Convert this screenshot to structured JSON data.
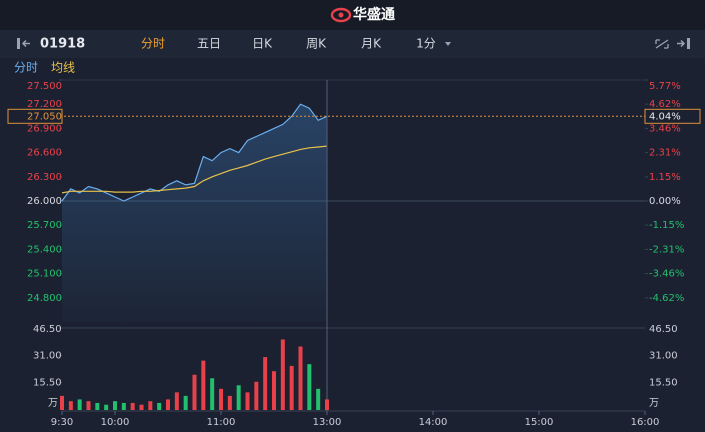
{
  "header": {
    "brand": "华盛通"
  },
  "toolbar": {
    "symbol": "01918",
    "tabs": [
      "分时",
      "五日",
      "日K",
      "周K",
      "月K",
      "1分"
    ],
    "active_tab": 0
  },
  "chart_data": [
    {
      "type": "line",
      "x": [
        "9:30",
        "9:35",
        "9:40",
        "9:45",
        "9:50",
        "9:55",
        "10:00",
        "10:05",
        "10:10",
        "10:15",
        "10:20",
        "10:25",
        "10:30",
        "10:35",
        "10:40",
        "10:45",
        "10:50",
        "10:55",
        "11:00",
        "11:05",
        "11:10",
        "11:15",
        "11:20",
        "11:25",
        "11:30",
        "11:35",
        "11:40",
        "11:45",
        "11:50",
        "11:55",
        "12:00"
      ],
      "series": [
        {
          "name": "分时",
          "color": "#6aaef0",
          "values": [
            26.0,
            26.15,
            26.1,
            26.18,
            26.15,
            26.1,
            26.05,
            26.0,
            26.05,
            26.1,
            26.15,
            26.12,
            26.2,
            26.25,
            26.2,
            26.22,
            26.55,
            26.5,
            26.6,
            26.65,
            26.6,
            26.75,
            26.8,
            26.85,
            26.9,
            26.95,
            27.05,
            27.2,
            27.15,
            27.0,
            27.05
          ]
        },
        {
          "name": "均线",
          "color": "#e8c14a",
          "values": [
            26.1,
            26.12,
            26.12,
            26.12,
            26.12,
            26.12,
            26.11,
            26.11,
            26.11,
            26.12,
            26.12,
            26.13,
            26.14,
            26.15,
            26.16,
            26.18,
            26.25,
            26.3,
            26.34,
            26.38,
            26.41,
            26.44,
            26.48,
            26.52,
            26.55,
            26.58,
            26.61,
            26.64,
            26.66,
            26.67,
            26.68
          ]
        }
      ],
      "base": 26,
      "ylim": [
        24.5,
        27.5
      ],
      "yticks": [
        {
          "value": 27.5,
          "label": "27.500"
        },
        {
          "value": 27.2,
          "label": "27.200"
        },
        {
          "value": 26.9,
          "label": "26.900"
        },
        {
          "value": 26.6,
          "label": "26.600"
        },
        {
          "value": 26.3,
          "label": "26.300"
        },
        {
          "value": 26,
          "label": "26.000"
        },
        {
          "value": 25.7,
          "label": "25.700"
        },
        {
          "value": 25.4,
          "label": "25.400"
        },
        {
          "value": 25.1,
          "label": "25.100"
        },
        {
          "value": 24.8,
          "label": "24.800"
        }
      ],
      "y2lim": [
        -5.77,
        5.77
      ],
      "y2ticks": [
        {
          "value": 5.77,
          "label": "5.77%"
        },
        {
          "value": 4.62,
          "label": "4.62%"
        },
        {
          "value": 3.46,
          "label": "3.46%"
        },
        {
          "value": 2.31,
          "label": "2.31%"
        },
        {
          "value": 1.15,
          "label": "1.15%"
        },
        {
          "value": 0,
          "label": "0.00%"
        },
        {
          "value": -1.15,
          "label": "-1.15%"
        },
        {
          "value": -2.31,
          "label": "-2.31%"
        },
        {
          "value": -3.46,
          "label": "-3.46%"
        },
        {
          "value": -4.62,
          "label": "-4.62%"
        }
      ],
      "last": {
        "price": {
          "value": 27.05,
          "label": "27.050"
        },
        "change": {
          "value": 4.04,
          "label": "4.04%"
        }
      }
    },
    {
      "type": "bar",
      "x": [
        "9:30",
        "9:35",
        "9:40",
        "9:45",
        "9:50",
        "9:55",
        "10:00",
        "10:05",
        "10:10",
        "10:15",
        "10:20",
        "10:25",
        "10:30",
        "10:35",
        "10:40",
        "10:45",
        "10:50",
        "10:55",
        "11:00",
        "11:05",
        "11:10",
        "11:15",
        "11:20",
        "11:25",
        "11:30",
        "11:35",
        "11:40",
        "11:45",
        "11:50",
        "11:55",
        "12:00"
      ],
      "values": [
        8,
        5,
        6,
        5,
        4,
        3,
        5,
        4,
        4,
        3,
        5,
        4,
        6,
        10,
        8,
        20,
        28,
        18,
        12,
        8,
        14,
        10,
        16,
        30,
        22,
        40,
        25,
        36,
        26,
        12,
        6
      ],
      "up_color": "#e8414a",
      "down_color": "#22c06e",
      "ylim": [
        0,
        46.5
      ],
      "yticks": [
        {
          "value": 46.5,
          "label": "46.50"
        },
        {
          "value": 31,
          "label": "31.00"
        },
        {
          "value": 15.5,
          "label": "15.50"
        }
      ],
      "y_unit": "万",
      "xticks": [
        "9:30",
        "10:00",
        "11:00",
        "13:00",
        "14:00",
        "15:00",
        "16:00"
      ]
    }
  ]
}
